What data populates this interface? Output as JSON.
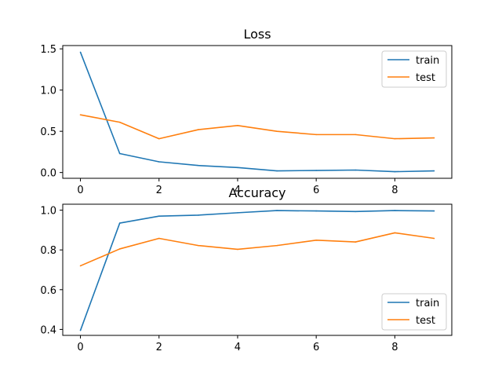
{
  "chart_data": [
    {
      "type": "line",
      "title": "Loss",
      "xlabel": "",
      "ylabel": "",
      "x": [
        0,
        1,
        2,
        3,
        4,
        5,
        6,
        7,
        8,
        9
      ],
      "xlim": [
        -0.45,
        9.45
      ],
      "ylim": [
        -0.07,
        1.54
      ],
      "xticks": [
        "0",
        "2",
        "4",
        "6",
        "8"
      ],
      "yticks": [
        "0.0",
        "0.5",
        "1.0",
        "1.5"
      ],
      "grid": false,
      "legend_position": "top-right",
      "series": [
        {
          "name": "train",
          "color": "#1f77b4",
          "values": [
            1.46,
            0.23,
            0.13,
            0.085,
            0.06,
            0.02,
            0.025,
            0.03,
            0.01,
            0.02
          ]
        },
        {
          "name": "test",
          "color": "#ff7f0e",
          "values": [
            0.7,
            0.61,
            0.41,
            0.52,
            0.57,
            0.5,
            0.46,
            0.46,
            0.41,
            0.42
          ]
        }
      ]
    },
    {
      "type": "line",
      "title": "Accuracy",
      "xlabel": "",
      "ylabel": "",
      "x": [
        0,
        1,
        2,
        3,
        4,
        5,
        6,
        7,
        8,
        9
      ],
      "xlim": [
        -0.45,
        9.45
      ],
      "ylim": [
        0.37,
        1.03
      ],
      "xticks": [
        "0",
        "2",
        "4",
        "6",
        "8"
      ],
      "yticks": [
        "0.4",
        "0.6",
        "0.8",
        "1.0"
      ],
      "grid": false,
      "legend_position": "bottom-right",
      "series": [
        {
          "name": "train",
          "color": "#1f77b4",
          "values": [
            0.395,
            0.935,
            0.97,
            0.975,
            0.987,
            0.998,
            0.996,
            0.993,
            0.998,
            0.996
          ]
        },
        {
          "name": "test",
          "color": "#ff7f0e",
          "values": [
            0.72,
            0.805,
            0.858,
            0.822,
            0.803,
            0.822,
            0.849,
            0.84,
            0.886,
            0.858
          ]
        }
      ]
    }
  ]
}
